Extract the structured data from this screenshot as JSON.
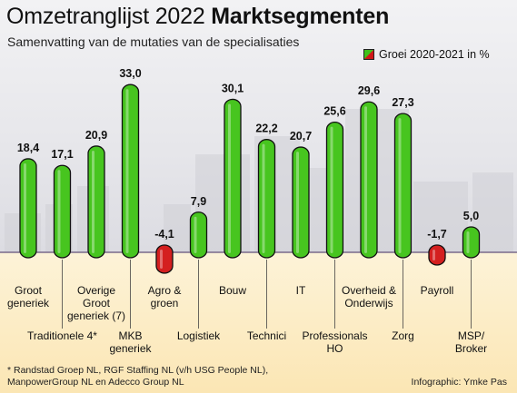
{
  "header": {
    "title_light": "Omzetranglijst 2022 ",
    "title_bold": "Marktsegmenten",
    "subtitle": "Samenvatting van de mutaties van de specialisaties"
  },
  "legend": {
    "label": "Groei 2020-2021 in %"
  },
  "footer": {
    "footnote_line1": "* Randstad Groep NL, RGF Staffing NL (v/h USG People NL),",
    "footnote_line2": "ManpowerGroup NL en Adecco Group NL",
    "credit": "Infographic: Ymke Pas"
  },
  "colors": {
    "positive": "#47c51f",
    "negative": "#d41f1f",
    "baseline": "#7a6a8a"
  },
  "chart_data": {
    "type": "bar",
    "title": "Marktsegmenten",
    "subtitle": "Samenvatting van de mutaties van de specialisaties",
    "series": [
      {
        "name": "Groei 2020-2021 in %"
      }
    ],
    "categories": [
      "Groot generiek",
      "Traditionele 4*",
      "Overige Groot generiek (7)",
      "MKB generiek",
      "Agro & groen",
      "Logistiek",
      "Bouw",
      "Technici",
      "IT",
      "Professionals HO",
      "Overheid & Onderwijs",
      "Zorg",
      "Payroll",
      "MSP/ Broker"
    ],
    "values": [
      18.4,
      17.1,
      20.9,
      33.0,
      -4.1,
      7.9,
      30.1,
      22.2,
      20.7,
      25.6,
      29.6,
      27.3,
      -1.7,
      5.0
    ],
    "value_labels": [
      "18,4",
      "17,1",
      "20,9",
      "33,0",
      "-4,1",
      "7,9",
      "30,1",
      "22,2",
      "20,7",
      "25,6",
      "29,6",
      "27,3",
      "-1,7",
      "5,0"
    ],
    "category_label_lines": [
      [
        "Groot",
        "generiek"
      ],
      [
        "Traditionele 4*"
      ],
      [
        "Overige",
        "Groot",
        "generiek (7)"
      ],
      [
        "MKB",
        "generiek"
      ],
      [
        "Agro &",
        "groen"
      ],
      [
        "Logistiek"
      ],
      [
        "Bouw"
      ],
      [
        "Technici"
      ],
      [
        "IT"
      ],
      [
        "Professionals",
        "HO"
      ],
      [
        "Overheid &",
        "Onderwijs"
      ],
      [
        "Zorg"
      ],
      [
        "Payroll"
      ],
      [
        "MSP/",
        "Broker"
      ]
    ],
    "label_rows": [
      0,
      1,
      0,
      1,
      0,
      1,
      0,
      1,
      0,
      1,
      0,
      1,
      0,
      1
    ],
    "grid": false,
    "legend_position": "top-right"
  }
}
